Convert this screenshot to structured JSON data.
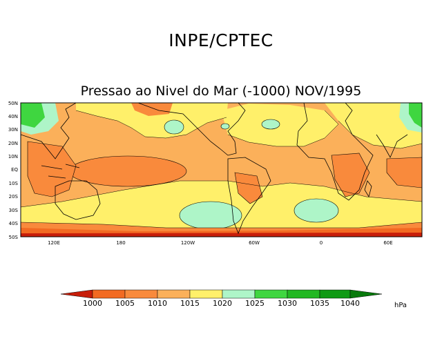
{
  "header": {
    "title": "INPE/CPTEC"
  },
  "map": {
    "subtitle": "Pressao ao Nivel do Mar (-1000) NOV/1995",
    "lat_labels": [
      "50N",
      "40N",
      "30N",
      "20N",
      "10N",
      "EQ",
      "10S",
      "20S",
      "30S",
      "40S",
      "50S"
    ],
    "lon_labels": [
      "120E",
      "180",
      "120W",
      "60W",
      "0",
      "60E"
    ]
  },
  "colorbar": {
    "levels": [
      "1000",
      "1005",
      "1010",
      "1015",
      "1020",
      "1025",
      "1030",
      "1035",
      "1040"
    ],
    "unit": "hPa",
    "colors": [
      "#c81e0a",
      "#f26a22",
      "#f98a3c",
      "#fbb05a",
      "#fff06a",
      "#aef5c8",
      "#3fd640",
      "#22b822",
      "#0f9a14",
      "#087a0c"
    ]
  }
}
